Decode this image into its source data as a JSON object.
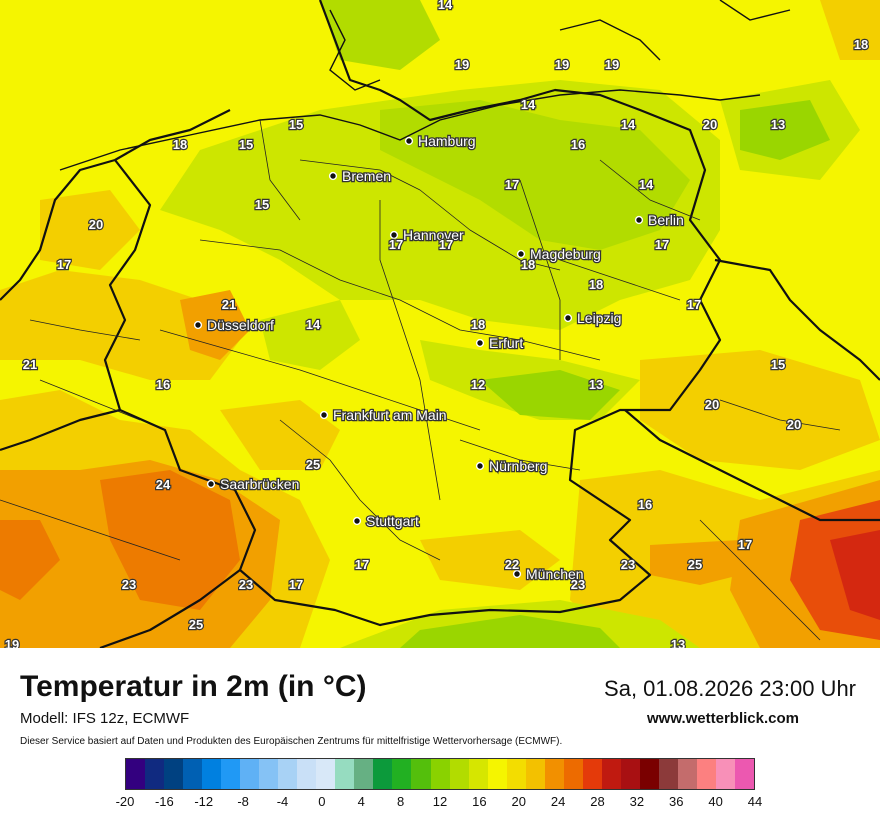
{
  "header": {
    "title": "Temperatur in 2m (in °C)",
    "datetime": "Sa, 01.08.2026 23:00 Uhr",
    "model": "Modell: IFS 12z, ECMWF",
    "site": "www.wetterblick.com",
    "disclaimer": "Dieser Service basiert auf Daten und Produkten des Europäischen Zentrums für mittelfristige Wettervorhersage (ECMWF)."
  },
  "colors": {
    "yellow": "#f5f500",
    "lime": "#cde600",
    "green": "#9ad600",
    "yellow_orange": "#f3cf00",
    "orange": "#f2a000",
    "deep_orange": "#ed7b00",
    "red_orange": "#e84e0a",
    "red": "#d42810",
    "border": "#111111"
  },
  "cities": [
    {
      "name": "Hamburg"
    },
    {
      "name": "Bremen"
    },
    {
      "name": "Hannover"
    },
    {
      "name": "Berlin"
    },
    {
      "name": "Magdeburg"
    },
    {
      "name": "Leipzig"
    },
    {
      "name": "Düsseldorf"
    },
    {
      "name": "Erfurt"
    },
    {
      "name": "Frankfurt am Main"
    },
    {
      "name": "Nürnberg"
    },
    {
      "name": "Saarbrücken"
    },
    {
      "name": "Stuttgart"
    },
    {
      "name": "München"
    }
  ],
  "values": [
    "14",
    "18",
    "19",
    "19",
    "19",
    "14",
    "14",
    "20",
    "13",
    "18",
    "15",
    "15",
    "16",
    "17",
    "14",
    "20",
    "15",
    "17",
    "17",
    "17",
    "17",
    "18",
    "18",
    "21",
    "14",
    "18",
    "17",
    "21",
    "16",
    "12",
    "13",
    "15",
    "20",
    "20",
    "25",
    "24",
    "16",
    "17",
    "23",
    "22",
    "25",
    "23",
    "17",
    "23",
    "17",
    "23",
    "19",
    "13",
    "25"
  ],
  "legend": {
    "colors": [
      "#33007f",
      "#102a80",
      "#004181",
      "#0060b3",
      "#0080e0",
      "#2099f5",
      "#5fb1f5",
      "#85c2f5",
      "#a8d2f5",
      "#c9e0f7",
      "#d8e8f8",
      "#96dcc0",
      "#66b083",
      "#0c9a3b",
      "#22b022",
      "#54bf0c",
      "#8ad200",
      "#b2dc00",
      "#d6e600",
      "#f5f500",
      "#f3dd00",
      "#f3c100",
      "#f29000",
      "#ed6b00",
      "#e43a0a",
      "#c01a10",
      "#a81012",
      "#7a0000",
      "#8c3a3a",
      "#c46c6c",
      "#fc8080",
      "#f890b8",
      "#ec58b0"
    ],
    "ticks": [
      "-20",
      "-16",
      "-12",
      "-8",
      "-4",
      "0",
      "4",
      "8",
      "12",
      "16",
      "20",
      "24",
      "28",
      "32",
      "36",
      "40",
      "44"
    ]
  }
}
